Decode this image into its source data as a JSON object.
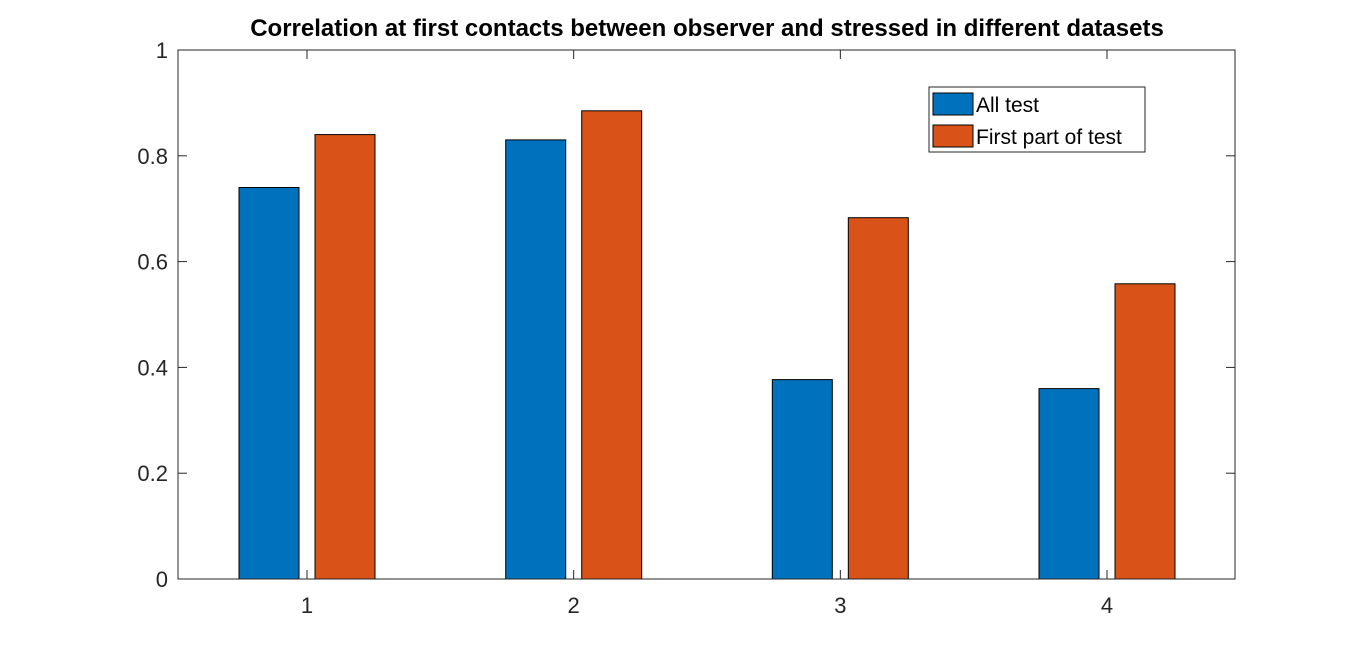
{
  "chart_data": {
    "type": "bar",
    "title": "Correlation at first contacts between observer and stressed in different datasets",
    "xlabel": "",
    "ylabel": "",
    "categories": [
      "1",
      "2",
      "3",
      "4"
    ],
    "series": [
      {
        "name": "All test",
        "values": [
          0.74,
          0.83,
          0.377,
          0.36
        ],
        "color": "#0072BD"
      },
      {
        "name": "First part of test",
        "values": [
          0.84,
          0.885,
          0.683,
          0.558
        ],
        "color": "#D95319"
      }
    ],
    "ylim": [
      0,
      1
    ],
    "yticks": [
      0,
      0.2,
      0.4,
      0.6,
      0.8,
      1
    ],
    "ytick_labels": [
      "0",
      "0.2",
      "0.4",
      "0.6",
      "0.8",
      "1"
    ],
    "grid": false,
    "legend_position": "top-right"
  }
}
